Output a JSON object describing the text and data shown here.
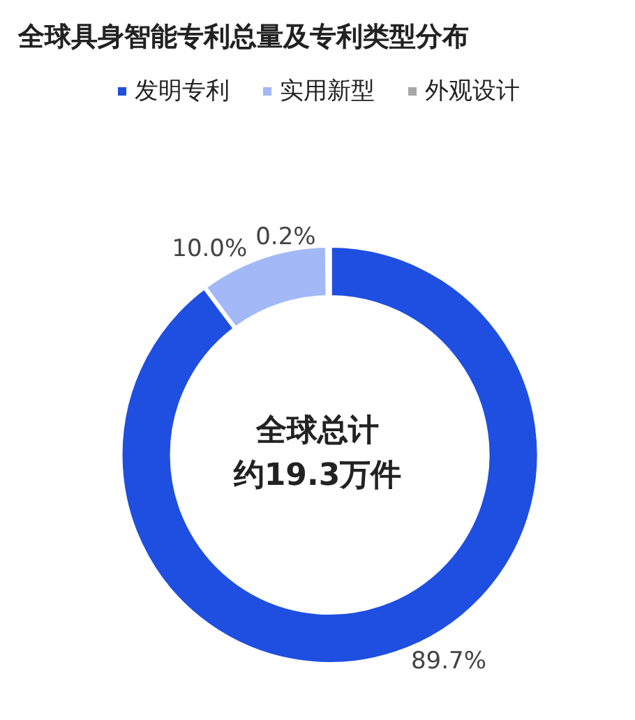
{
  "chart_data": {
    "type": "donut",
    "title": "全球具身智能专利总量及专利类型分布",
    "categories": [
      "发明专利",
      "实用新型",
      "外观设计"
    ],
    "values": [
      89.7,
      10.0,
      0.2
    ],
    "colors": [
      "#1f4fe0",
      "#a3b8f6",
      "#a6a6a6"
    ],
    "value_labels": [
      "89.7%",
      "10.0%",
      "0.2%"
    ],
    "annotations": [
      "全球总计",
      "约19.3万件"
    ],
    "legend": "top"
  }
}
